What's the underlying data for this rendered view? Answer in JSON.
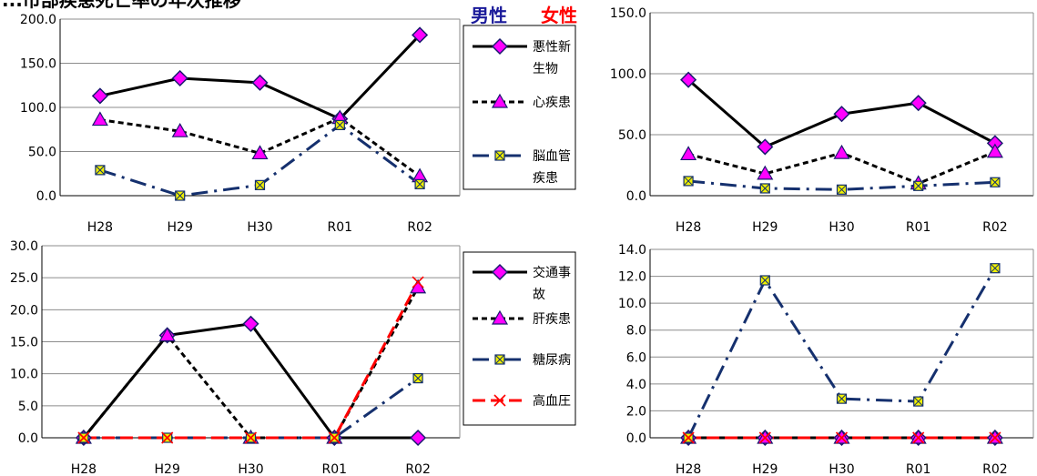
{
  "title_fragment": "...市部疾患死亡率の年次推移",
  "gender_labels": {
    "male": {
      "text": "男性",
      "color": "#1a1a9a"
    },
    "female": {
      "text": "女性",
      "color": "#ff0000"
    }
  },
  "series_styles": [
    {
      "color": "#000000",
      "dash": "",
      "marker": "diamond",
      "marker_fill": "#ff00ff",
      "marker_stroke": "#1a1a6e"
    },
    {
      "color": "#000000",
      "dash": "6,4",
      "marker": "triangle",
      "marker_fill": "#ff00ff",
      "marker_stroke": "#1a1a6e"
    },
    {
      "color": "#15306e",
      "dash": "18,7,3,7",
      "marker": "square-x",
      "marker_fill": "#f0f000",
      "marker_stroke": "#15306e"
    },
    {
      "color": "#ff0000",
      "dash": "14,6",
      "marker": "x",
      "marker_fill": "none",
      "marker_stroke": "#ff0000"
    }
  ],
  "chart_data": [
    {
      "type": "line",
      "categories": [
        "H28",
        "H29",
        "H30",
        "R01",
        "R02"
      ],
      "ylim": [
        0,
        200
      ],
      "yticks": [
        "0.0",
        "50.0",
        "100.0",
        "150.0",
        "200.0"
      ],
      "grid": true,
      "series": [
        {
          "name": "悪性新生物",
          "values": [
            113,
            133,
            128,
            87,
            182
          ]
        },
        {
          "name": "心疾患",
          "values": [
            86,
            73,
            48,
            88,
            22
          ]
        },
        {
          "name": "脳血管疾患",
          "values": [
            29,
            0,
            12,
            80,
            13
          ]
        }
      ]
    },
    {
      "type": "line",
      "categories": [
        "H28",
        "H29",
        "H30",
        "R01",
        "R02"
      ],
      "ylim": [
        0,
        150
      ],
      "yticks": [
        "0.0",
        "50.0",
        "100.0",
        "150.0"
      ],
      "grid": true,
      "series": [
        {
          "values": [
            95,
            40,
            67,
            76,
            43
          ]
        },
        {
          "values": [
            34,
            18,
            35,
            10,
            36
          ]
        },
        {
          "values": [
            12,
            6,
            5,
            8,
            11
          ]
        }
      ]
    },
    {
      "type": "line",
      "categories": [
        "H28",
        "H29",
        "H30",
        "R01",
        "R02"
      ],
      "ylim": [
        0,
        30
      ],
      "yticks": [
        "0.0",
        "5.0",
        "10.0",
        "15.0",
        "20.0",
        "25.0",
        "30.0"
      ],
      "grid": true,
      "series": [
        {
          "name": "交通事故",
          "values": [
            0,
            16,
            17.8,
            0,
            0
          ]
        },
        {
          "name": "肝疾患",
          "values": [
            0,
            16,
            0,
            0,
            23.5
          ]
        },
        {
          "name": "糖尿病",
          "values": [
            0,
            0,
            0,
            0,
            9.3
          ]
        },
        {
          "name": "高血圧",
          "values": [
            0,
            0,
            0,
            0,
            24.3
          ]
        }
      ]
    },
    {
      "type": "line",
      "categories": [
        "H28",
        "H29",
        "H30",
        "R01",
        "R02"
      ],
      "ylim": [
        0,
        14
      ],
      "yticks": [
        "0.0",
        "2.0",
        "4.0",
        "6.0",
        "8.0",
        "10.0",
        "12.0",
        "14.0"
      ],
      "grid": true,
      "series": [
        {
          "values": [
            0,
            0,
            0,
            0,
            0
          ]
        },
        {
          "values": [
            0,
            0,
            0,
            0,
            0
          ]
        },
        {
          "values": [
            0,
            11.7,
            2.9,
            2.7,
            12.6
          ]
        },
        {
          "values": [
            0,
            0,
            0,
            0,
            0
          ]
        }
      ]
    }
  ]
}
